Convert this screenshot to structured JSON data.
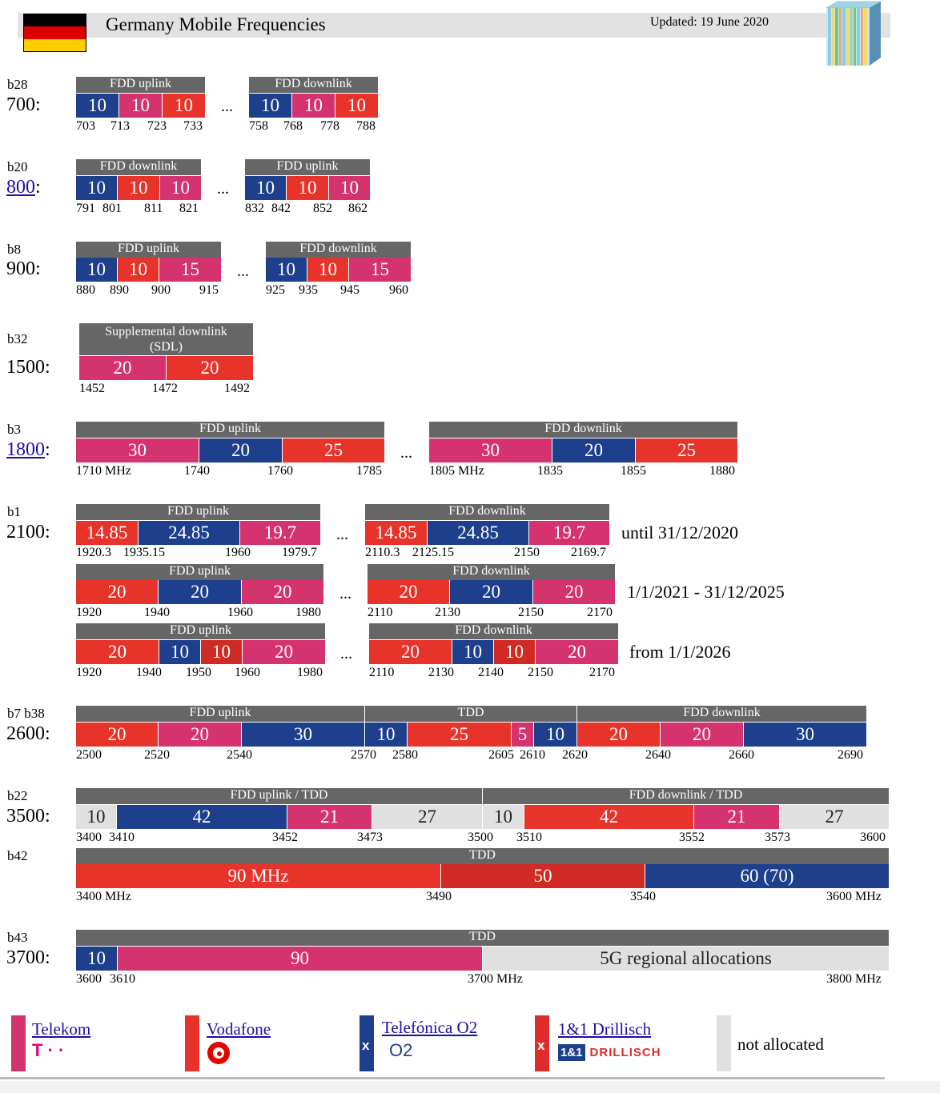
{
  "header": {
    "title": "Germany Mobile Frequencies",
    "updated": "Updated: 19 June 2020",
    "flag_colors": [
      "#000000",
      "#dd0000",
      "#ffce00"
    ]
  },
  "colors": {
    "telekom": "#d4336f",
    "vodafone": "#e8332a",
    "o2": "#1d3f8c",
    "drillisch": "#e02b2b",
    "not_allocated": "#e0e0e0",
    "header_gray": "#666666"
  },
  "bands": {
    "b28": {
      "tag": "b28",
      "label": "700:",
      "uplink_header": "FDD uplink",
      "downlink_header": "FDD downlink",
      "dots": "...",
      "uplink": [
        "10",
        "10",
        "10"
      ],
      "downlink": [
        "10",
        "10",
        "10"
      ],
      "uplink_ticks": [
        "703",
        "713",
        "723",
        "733"
      ],
      "downlink_ticks": [
        "758",
        "768",
        "778",
        "788"
      ]
    },
    "b20": {
      "tag": "b20",
      "label": "800",
      "colon": ":",
      "left_header": "FDD downlink",
      "right_header": "FDD uplink",
      "dots": "...",
      "left": [
        "10",
        "10",
        "10"
      ],
      "right": [
        "10",
        "10",
        "10"
      ],
      "left_ticks": [
        "791",
        "801",
        "811",
        "821"
      ],
      "right_ticks": [
        "832",
        "842",
        "852",
        "862"
      ]
    },
    "b8": {
      "tag": "b8",
      "label": "900:",
      "uplink_header": "FDD uplink",
      "downlink_header": "FDD downlink",
      "dots": "...",
      "uplink": [
        "10",
        "10",
        "15"
      ],
      "downlink": [
        "10",
        "10",
        "15"
      ],
      "uplink_ticks": [
        "880",
        "890",
        "900",
        "915"
      ],
      "downlink_ticks": [
        "925",
        "935",
        "945",
        "960"
      ]
    },
    "b32": {
      "tag": "b32",
      "label": "1500:",
      "header_line1": "Supplemental downlink",
      "header_line2": "(SDL)",
      "blocks": [
        "20",
        "20"
      ],
      "ticks": [
        "1452",
        "1472",
        "1492"
      ]
    },
    "b3": {
      "tag": "b3",
      "label": "1800",
      "colon": ":",
      "uplink_header": "FDD uplink",
      "downlink_header": "FDD downlink",
      "dots": "...",
      "uplink": [
        "30",
        "20",
        "25"
      ],
      "downlink": [
        "30",
        "20",
        "25"
      ],
      "uplink_ticks": [
        "1710 MHz",
        "1740",
        "1760",
        "1785"
      ],
      "downlink_ticks": [
        "1805 MHz",
        "1835",
        "1855",
        "1880"
      ]
    },
    "b1": {
      "tag": "b1",
      "label": "2100:",
      "uplink_header": "FDD uplink",
      "downlink_header": "FDD downlink",
      "dots": "...",
      "row1": {
        "uplink": [
          "14.85",
          "24.85",
          "19.7"
        ],
        "downlink": [
          "14.85",
          "24.85",
          "19.7"
        ],
        "uplink_ticks": [
          "1920.3",
          "1935.15",
          "1960",
          "1979.7"
        ],
        "downlink_ticks": [
          "2110.3",
          "2125.15",
          "2150",
          "2169.7"
        ],
        "note": "until 31/12/2020"
      },
      "row2": {
        "uplink": [
          "20",
          "20",
          "20"
        ],
        "downlink": [
          "20",
          "20",
          "20"
        ],
        "uplink_ticks": [
          "1920",
          "1940",
          "1960",
          "1980"
        ],
        "downlink_ticks": [
          "2110",
          "2130",
          "2150",
          "2170"
        ],
        "note": "1/1/2021 - 31/12/2025"
      },
      "row3": {
        "uplink": [
          "20",
          "10",
          "10",
          "20"
        ],
        "downlink": [
          "20",
          "10",
          "10",
          "20"
        ],
        "uplink_ticks": [
          "1920",
          "1940",
          "1950",
          "1960",
          "1980"
        ],
        "downlink_ticks": [
          "2110",
          "2130",
          "2140",
          "2150",
          "2170"
        ],
        "note": "from 1/1/2026"
      }
    },
    "b7": {
      "tag": "b7 b38",
      "label": "2600:",
      "uplink_header": "FDD uplink",
      "tdd_header": "TDD",
      "downlink_header": "FDD downlink",
      "blocks": [
        "20",
        "20",
        "30",
        "10",
        "25",
        "5",
        "10",
        "20",
        "20",
        "30"
      ],
      "ticks": [
        "2500",
        "2520",
        "2540",
        "2570",
        "2580",
        "2605",
        "2610",
        "2620",
        "2640",
        "2660",
        "2690"
      ]
    },
    "b22": {
      "tag": "b22",
      "label": "3500:",
      "left_header": "FDD uplink / TDD",
      "right_header": "FDD downlink / TDD",
      "blocks": [
        "10",
        "42",
        "21",
        "27",
        "10",
        "42",
        "21",
        "27"
      ],
      "ticks": [
        "3400",
        "3410",
        "3452",
        "3473",
        "3500",
        "3510",
        "3552",
        "3573",
        "3600"
      ]
    },
    "b42": {
      "tag": "b42",
      "header": "TDD",
      "blocks": [
        "90 MHz",
        "50",
        "60 (70)"
      ],
      "ticks": [
        "3400 MHz",
        "3490",
        "3540",
        "3600 MHz"
      ]
    },
    "b43": {
      "tag": "b43",
      "label": "3700:",
      "header": "TDD",
      "blocks": [
        "10",
        "90",
        "5G regional allocations"
      ],
      "ticks": [
        "3600",
        "3610",
        "3700 MHz",
        "3800 MHz"
      ]
    }
  },
  "legend": {
    "telekom": {
      "name": "Telekom",
      "logo": "T · ·"
    },
    "vodafone": {
      "name": "Vodafone"
    },
    "o2": {
      "name": "Telefónica O2",
      "mark": "x",
      "logo": "O2"
    },
    "drillisch": {
      "name": "1&1 Drillisch",
      "mark": "x",
      "logo_a": "1&1",
      "logo_b": "DRILLISCH"
    },
    "not_allocated": {
      "name": "not allocated"
    }
  }
}
